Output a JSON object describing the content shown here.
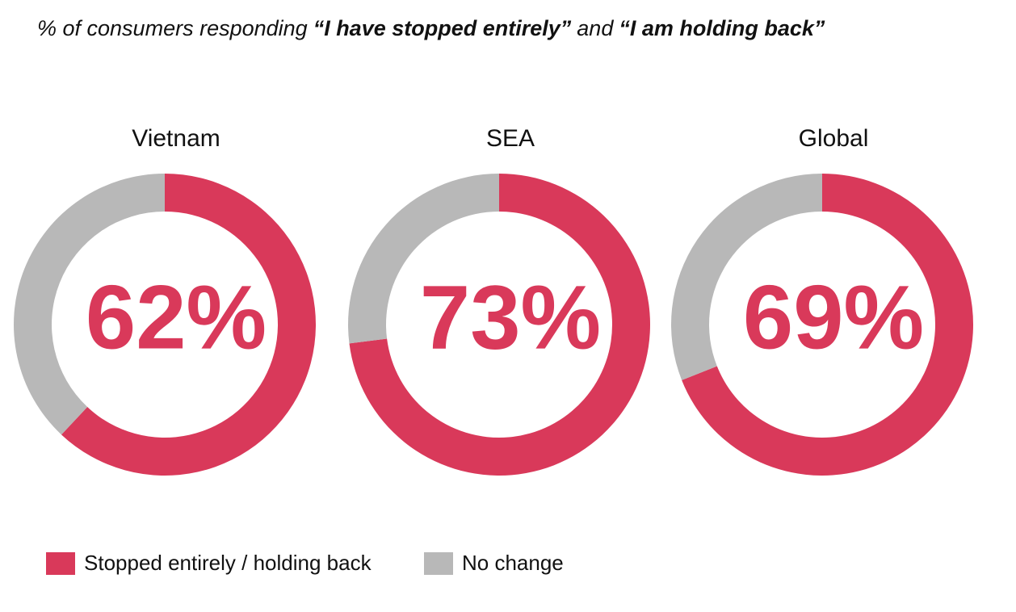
{
  "title": [
    "% of consumers responding",
    "“I have stopped entirely”",
    "and",
    "“I am holding back”"
  ],
  "legend": {
    "categories": [
      "Stopped entirely / holding back",
      "No change"
    ],
    "colors": [
      "#d9395a",
      "#b8b8b8"
    ]
  },
  "chart_data": [
    {
      "type": "donut",
      "title": "Vietnam",
      "values": [
        62,
        38
      ],
      "value_labels": [
        "62%",
        null
      ]
    },
    {
      "type": "donut",
      "title": "SEA",
      "values": [
        73,
        27
      ],
      "value_labels": [
        "73%",
        null
      ]
    },
    {
      "type": "donut",
      "title": "Global",
      "values": [
        69,
        31
      ],
      "value_labels": [
        "69%",
        null
      ]
    }
  ]
}
